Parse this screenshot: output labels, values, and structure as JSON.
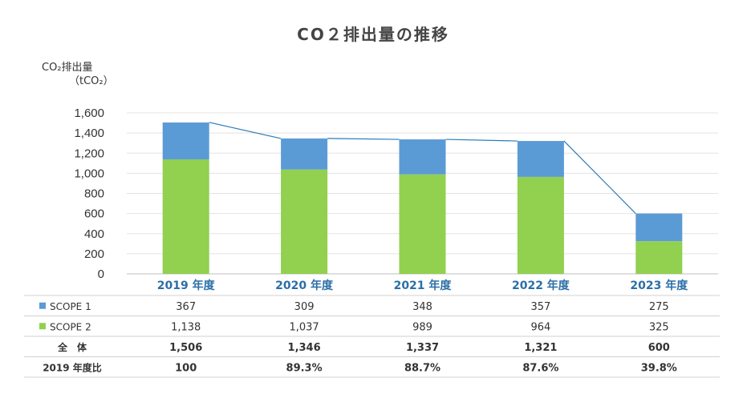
{
  "chart_data": {
    "type": "bar",
    "stacked": true,
    "title": "CO２排出量の推移",
    "ylabel": "CO₂排出量",
    "yunit": "（tCO₂）",
    "ylim": [
      0,
      1600
    ],
    "yticks": [
      0,
      200,
      400,
      600,
      800,
      1000,
      1200,
      1400,
      1600
    ],
    "ytick_labels": [
      "0",
      "200",
      "400",
      "600",
      "800",
      "1,000",
      "1,200",
      "1,400",
      "1,600"
    ],
    "grid": true,
    "categories": [
      "2019 年度",
      "2020 年度",
      "2021 年度",
      "2022 年度",
      "2023 年度"
    ],
    "series": [
      {
        "name": "SCOPE 2",
        "values": [
          1138,
          1037,
          989,
          964,
          325
        ],
        "color": "#92d050"
      },
      {
        "name": "SCOPE 1",
        "values": [
          367,
          309,
          348,
          357,
          275
        ],
        "color": "#5b9bd5"
      }
    ],
    "total_line": {
      "values": [
        1506,
        1346,
        1337,
        1321,
        600
      ],
      "color": "#2a7ab5"
    },
    "table": {
      "rows": [
        {
          "label": "SCOPE 1",
          "marker": "#5b9bd5",
          "bold": false,
          "cells": [
            "367",
            "309",
            "348",
            "357",
            "275"
          ]
        },
        {
          "label": "SCOPE 2",
          "marker": "#92d050",
          "bold": false,
          "cells": [
            "1,138",
            "1,037",
            "989",
            "964",
            "325"
          ]
        },
        {
          "label": "全　体",
          "marker": null,
          "bold": true,
          "cells": [
            "1,506",
            "1,346",
            "1,337",
            "1,321",
            "600"
          ]
        },
        {
          "label": "2019 年度比",
          "marker": null,
          "bold": true,
          "cells": [
            "100",
            "89.3%",
            "88.7%",
            "87.6%",
            "39.8%"
          ]
        }
      ]
    }
  }
}
